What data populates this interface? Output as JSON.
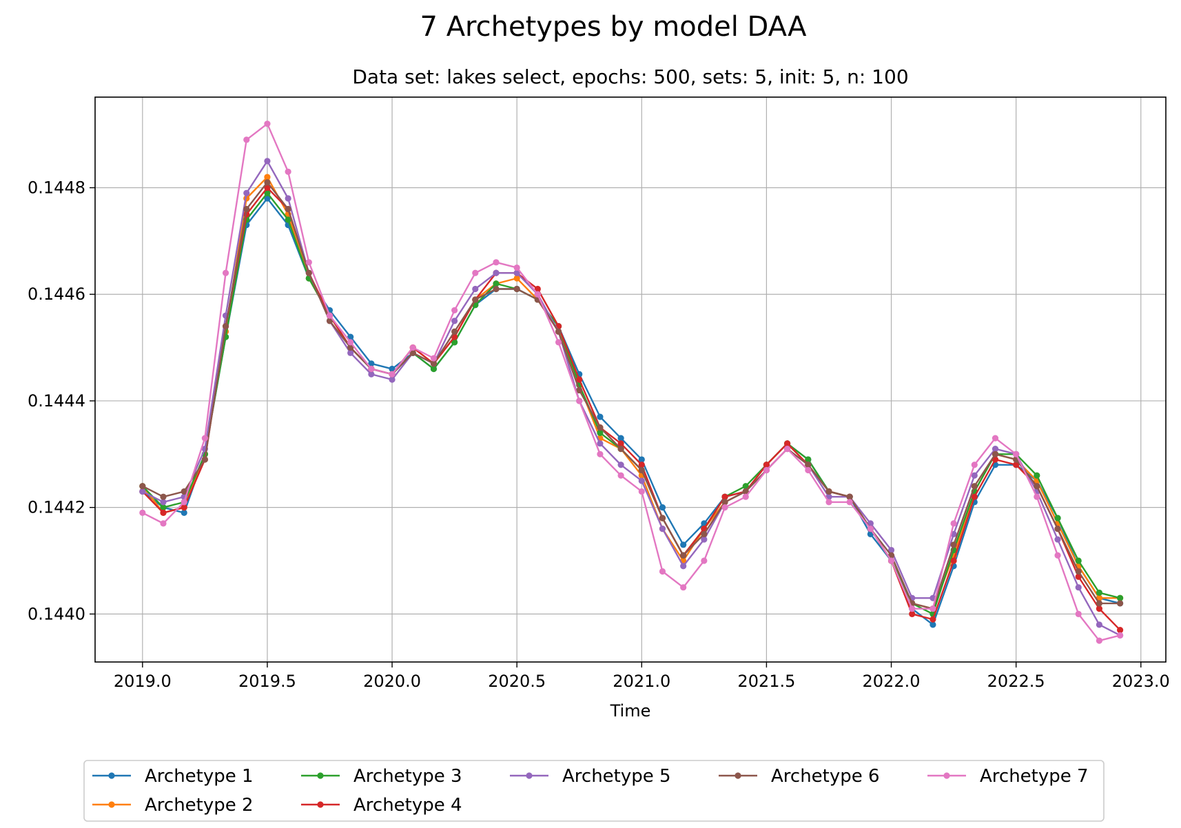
{
  "chart_data": {
    "type": "line",
    "title": "7 Archetypes by model DAA",
    "subtitle": "Data set: lakes select, epochs: 500, sets: 5, init: 5, n: 100",
    "xlabel": "Time",
    "ylabel": "",
    "xlim": [
      2018.81,
      2023.1
    ],
    "ylim": [
      0.14391,
      0.14497
    ],
    "xticks": [
      2019.0,
      2019.5,
      2020.0,
      2020.5,
      2021.0,
      2021.5,
      2022.0,
      2022.5,
      2023.0
    ],
    "xtick_labels": [
      "2019.0",
      "2019.5",
      "2020.0",
      "2020.5",
      "2021.0",
      "2021.5",
      "2022.0",
      "2022.5",
      "2023.0"
    ],
    "yticks": [
      0.144,
      0.1442,
      0.1444,
      0.1446,
      0.1448
    ],
    "ytick_labels": [
      "0.1440",
      "0.1442",
      "0.1444",
      "0.1446",
      "0.1448"
    ],
    "grid": true,
    "legend_position": "bottom-center",
    "x": [
      2019.0,
      2019.0833,
      2019.1667,
      2019.25,
      2019.3333,
      2019.4167,
      2019.5,
      2019.5833,
      2019.6667,
      2019.75,
      2019.8333,
      2019.9167,
      2020.0,
      2020.0833,
      2020.1667,
      2020.25,
      2020.3333,
      2020.4167,
      2020.5,
      2020.5833,
      2020.6667,
      2020.75,
      2020.8333,
      2020.9167,
      2021.0,
      2021.0833,
      2021.1667,
      2021.25,
      2021.3333,
      2021.4167,
      2021.5,
      2021.5833,
      2021.6667,
      2021.75,
      2021.8333,
      2021.9167,
      2022.0,
      2022.0833,
      2022.1667,
      2022.25,
      2022.3333,
      2022.4167,
      2022.5,
      2022.5833,
      2022.6667,
      2022.75,
      2022.8333,
      2022.9167
    ],
    "series": [
      {
        "name": "Archetype 1",
        "color": "#1f77b4",
        "values": [
          0.14423,
          0.1442,
          0.14419,
          0.1443,
          0.14452,
          0.14473,
          0.14478,
          0.14473,
          0.14463,
          0.14457,
          0.14452,
          0.14447,
          0.14446,
          0.14449,
          0.14446,
          0.14451,
          0.14458,
          0.14461,
          0.14461,
          0.14459,
          0.14454,
          0.14445,
          0.14437,
          0.14433,
          0.14429,
          0.1442,
          0.14413,
          0.14417,
          0.14422,
          0.14423,
          0.14428,
          0.14432,
          0.14429,
          0.14423,
          0.14422,
          0.14415,
          0.1441,
          0.14401,
          0.14398,
          0.14409,
          0.14421,
          0.14428,
          0.14428,
          0.14425,
          0.14418,
          0.14409,
          0.14403,
          0.14402
        ]
      },
      {
        "name": "Archetype 2",
        "color": "#ff7f0e",
        "values": [
          0.14424,
          0.14419,
          0.1442,
          0.1443,
          0.14453,
          0.14478,
          0.14482,
          0.14475,
          0.14463,
          0.14456,
          0.1445,
          0.14446,
          0.14445,
          0.1445,
          0.14447,
          0.14452,
          0.14459,
          0.14462,
          0.14463,
          0.14459,
          0.14453,
          0.14443,
          0.14433,
          0.14431,
          0.14426,
          0.14416,
          0.1441,
          0.14416,
          0.14421,
          0.14423,
          0.14428,
          0.14432,
          0.14428,
          0.14423,
          0.14422,
          0.14416,
          0.1441,
          0.14402,
          0.14401,
          0.14411,
          0.14423,
          0.1443,
          0.14429,
          0.14425,
          0.14417,
          0.14409,
          0.14403,
          0.14403
        ]
      },
      {
        "name": "Archetype 3",
        "color": "#2ca02c",
        "values": [
          0.14424,
          0.1442,
          0.14421,
          0.1443,
          0.14452,
          0.14474,
          0.14479,
          0.14474,
          0.14463,
          0.14456,
          0.1445,
          0.14446,
          0.14445,
          0.14449,
          0.14446,
          0.14451,
          0.14458,
          0.14462,
          0.14461,
          0.14459,
          0.14454,
          0.14443,
          0.14434,
          0.14431,
          0.14427,
          0.14418,
          0.14411,
          0.14416,
          0.14422,
          0.14424,
          0.14428,
          0.14432,
          0.14429,
          0.14423,
          0.14422,
          0.14416,
          0.1441,
          0.14402,
          0.144,
          0.14412,
          0.14423,
          0.1443,
          0.1443,
          0.14426,
          0.14418,
          0.1441,
          0.14404,
          0.14403
        ]
      },
      {
        "name": "Archetype 4",
        "color": "#d62728",
        "values": [
          0.14423,
          0.14419,
          0.1442,
          0.14429,
          0.14454,
          0.14475,
          0.1448,
          0.14476,
          0.14464,
          0.14456,
          0.1445,
          0.14446,
          0.14445,
          0.1445,
          0.14447,
          0.14452,
          0.14459,
          0.14464,
          0.14464,
          0.14461,
          0.14454,
          0.14444,
          0.14435,
          0.14432,
          0.14428,
          0.14418,
          0.14411,
          0.14416,
          0.14422,
          0.14423,
          0.14428,
          0.14432,
          0.14428,
          0.14423,
          0.14422,
          0.14416,
          0.1441,
          0.144,
          0.14399,
          0.1441,
          0.14422,
          0.14429,
          0.14428,
          0.14424,
          0.14416,
          0.14407,
          0.14401,
          0.14397
        ]
      },
      {
        "name": "Archetype 5",
        "color": "#9467bd",
        "values": [
          0.14423,
          0.14421,
          0.14422,
          0.14431,
          0.14456,
          0.14479,
          0.14485,
          0.14478,
          0.14464,
          0.14455,
          0.14449,
          0.14445,
          0.14444,
          0.14449,
          0.14447,
          0.14455,
          0.14461,
          0.14464,
          0.14464,
          0.1446,
          0.14453,
          0.1444,
          0.14432,
          0.14428,
          0.14425,
          0.14416,
          0.14409,
          0.14414,
          0.14421,
          0.14423,
          0.14427,
          0.14431,
          0.14428,
          0.14422,
          0.14422,
          0.14417,
          0.14412,
          0.14403,
          0.14403,
          0.14415,
          0.14426,
          0.14431,
          0.1443,
          0.14423,
          0.14414,
          0.14405,
          0.14398,
          0.14396
        ]
      },
      {
        "name": "Archetype 6",
        "color": "#8c564b",
        "values": [
          0.14424,
          0.14422,
          0.14423,
          0.14429,
          0.14454,
          0.14476,
          0.14481,
          0.14476,
          0.14464,
          0.14455,
          0.1445,
          0.14446,
          0.14445,
          0.14449,
          0.14447,
          0.14453,
          0.14459,
          0.14461,
          0.14461,
          0.14459,
          0.14453,
          0.14442,
          0.14435,
          0.14431,
          0.14427,
          0.14418,
          0.14411,
          0.14415,
          0.14421,
          0.14423,
          0.14427,
          0.14431,
          0.14428,
          0.14423,
          0.14422,
          0.14416,
          0.14411,
          0.14402,
          0.14401,
          0.14413,
          0.14424,
          0.1443,
          0.14429,
          0.14424,
          0.14416,
          0.14408,
          0.14402,
          0.14402
        ]
      },
      {
        "name": "Archetype 7",
        "color": "#e377c2",
        "values": [
          0.14419,
          0.14417,
          0.14421,
          0.14433,
          0.14464,
          0.14489,
          0.14492,
          0.14483,
          0.14466,
          0.14456,
          0.14451,
          0.14446,
          0.14445,
          0.1445,
          0.14448,
          0.14457,
          0.14464,
          0.14466,
          0.14465,
          0.1446,
          0.14451,
          0.1444,
          0.1443,
          0.14426,
          0.14423,
          0.14408,
          0.14405,
          0.1441,
          0.1442,
          0.14422,
          0.14427,
          0.14431,
          0.14427,
          0.14421,
          0.14421,
          0.14416,
          0.1441,
          0.14401,
          0.14401,
          0.14417,
          0.14428,
          0.14433,
          0.1443,
          0.14422,
          0.14411,
          0.144,
          0.14395,
          0.14396
        ]
      }
    ]
  }
}
